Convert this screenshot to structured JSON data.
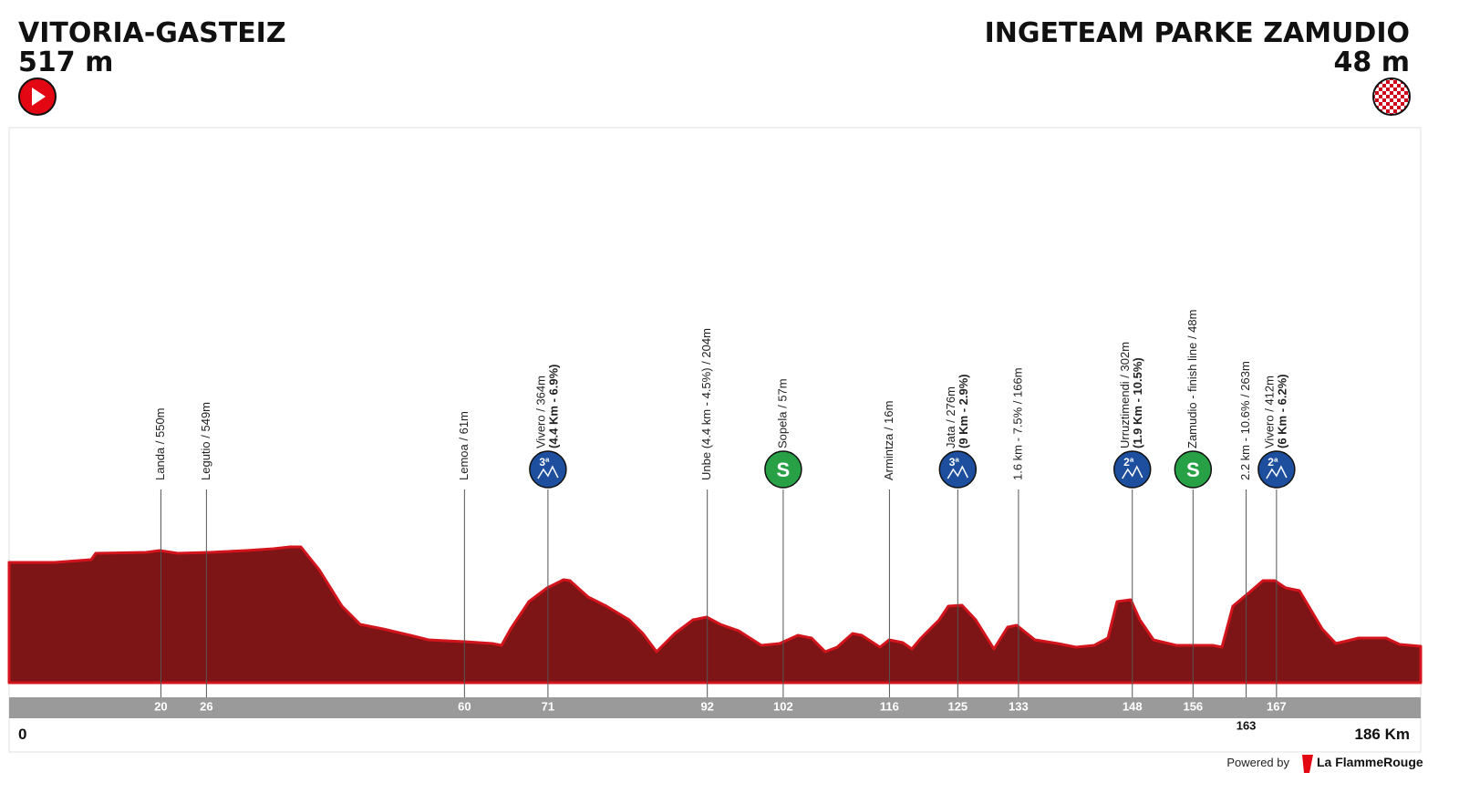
{
  "start": {
    "name": "VITORIA-GASTEIZ",
    "altitude": "517 m"
  },
  "finish": {
    "name": "INGETEAM PARKE ZAMUDIO",
    "altitude": "48 m"
  },
  "distance": {
    "start": "0",
    "end": {
      "value": 186,
      "label": "186 Km"
    }
  },
  "markers": [
    {
      "km": 20,
      "label": "Landa / 550m"
    },
    {
      "km": 26,
      "label": "Legutio / 549m"
    },
    {
      "km": 60,
      "label": "Lemoa / 61m"
    },
    {
      "km": 71,
      "label": "Vivero / 364m",
      "detail": "(4.4 Km - 6.9%)",
      "badge": "3ª",
      "badge_color": "#1d4f9e"
    },
    {
      "km": 92,
      "label": "Unbe (4.4 km - 4.5%) / 204m"
    },
    {
      "km": 102,
      "label": "Sopela / 57m",
      "badge": "S",
      "badge_color": "#27a046"
    },
    {
      "km": 116,
      "label": "Armintza / 16m"
    },
    {
      "km": 125,
      "label": "Jata / 276m",
      "detail": "(9 Km - 2.9%)",
      "badge": "3ª",
      "badge_color": "#1d4f9e"
    },
    {
      "km": 133,
      "label": "1.6 km - 7.5% / 166m"
    },
    {
      "km": 148,
      "label": "Urruztimendi / 302m",
      "detail": "(1.9 Km - 10.5%)",
      "badge": "2ª",
      "badge_color": "#1d4f9e"
    },
    {
      "km": 156,
      "label": "Zamudio - finish line / 48m",
      "badge": "S",
      "badge_color": "#27a046"
    },
    {
      "km": 163,
      "label": "2.2 km - 10.6% / 263m",
      "km_label_below": true
    },
    {
      "km": 167,
      "label": "Vivero / 412m",
      "detail": "(6 Km - 6.2%)",
      "badge": "2ª",
      "badge_color": "#1d4f9e"
    }
  ],
  "footer": {
    "powered": "Powered by",
    "brand": "La FlammeRouge"
  }
}
